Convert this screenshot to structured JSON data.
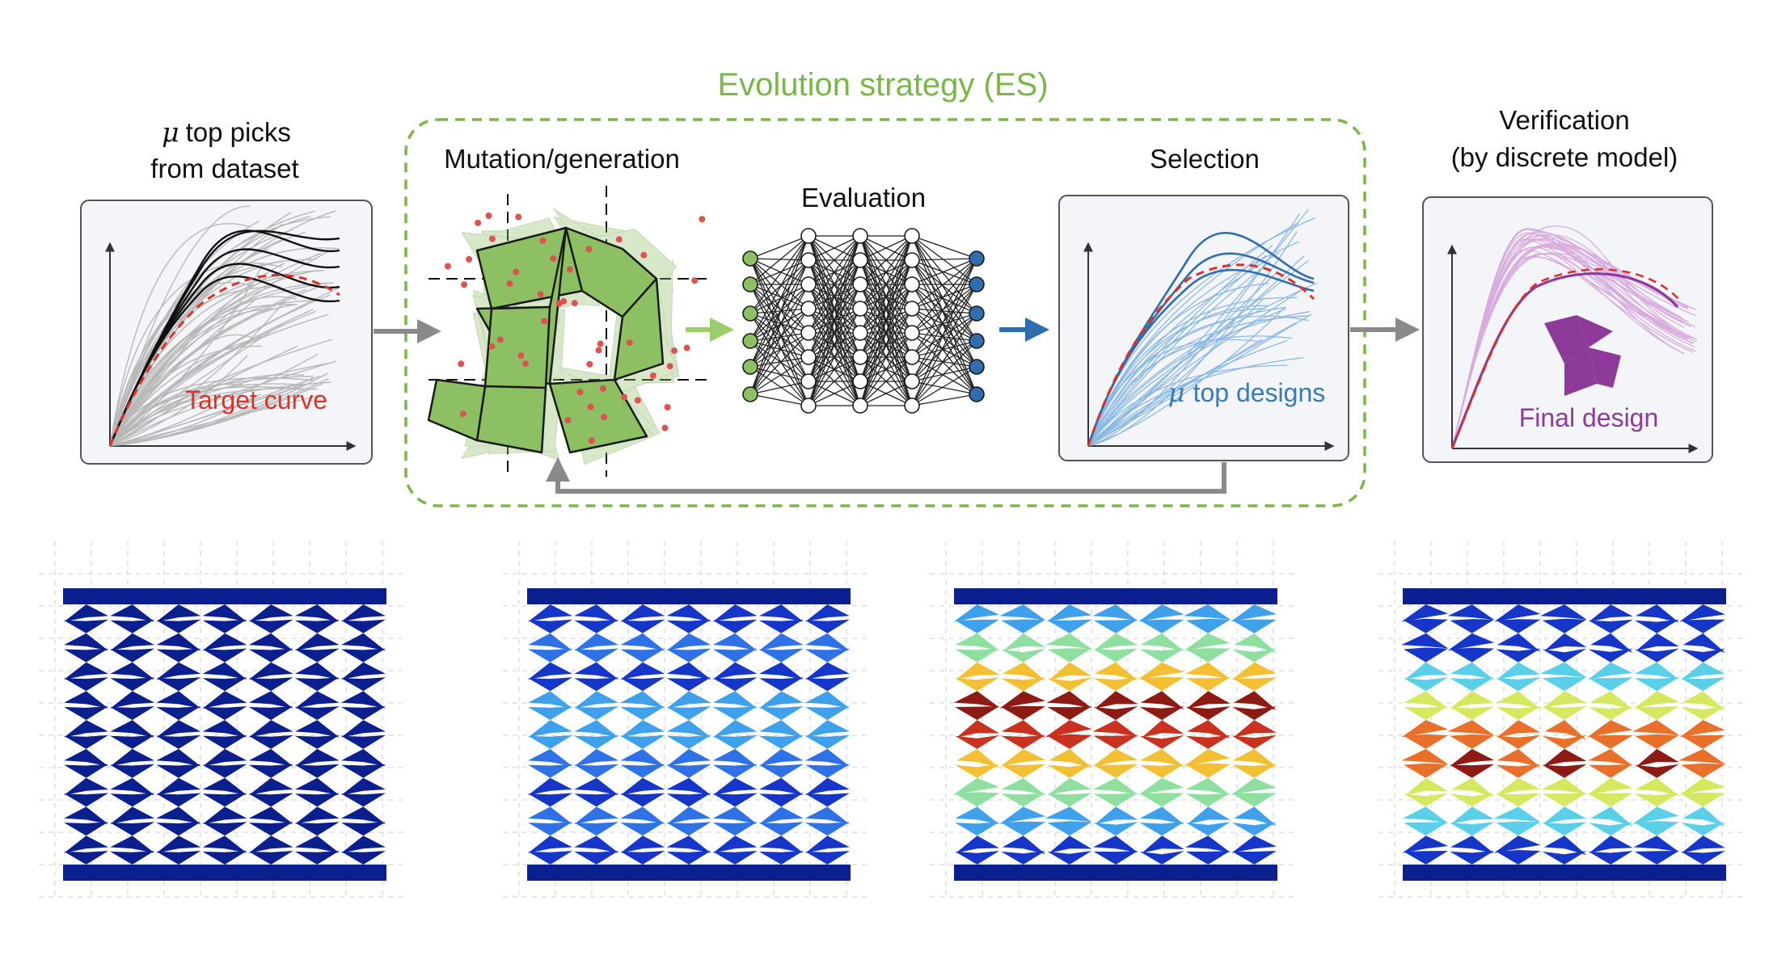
{
  "es_title": "Evolution strategy (ES)",
  "panel1": {
    "title_mu": "μ",
    "title_line1": "top picks",
    "title_line2": "from dataset",
    "target_label": "Target curve"
  },
  "mutation": {
    "title": "Mutation/generation"
  },
  "evaluation": {
    "title": "Evaluation"
  },
  "selection": {
    "title": "Selection",
    "mu": "μ",
    "top_label": "top designs"
  },
  "verification": {
    "title_line1": "Verification",
    "title_line2": "(by discrete model)",
    "final_label": "Final design"
  },
  "colors": {
    "es_green": "#7ab648",
    "target_red": "#e0302a",
    "selection_blue": "#3a7ab8",
    "final_purple": "#8e3a9a",
    "tile_green": "#8cc063",
    "arrow_gray": "#8a8a8a",
    "deep_blue": "#0b1f8e"
  }
}
